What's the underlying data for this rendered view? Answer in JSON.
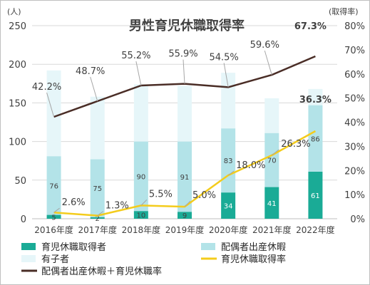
{
  "chart_data": {
    "type": "bar+line",
    "title": "男性育児休職取得率",
    "left_unit": "(人)",
    "right_unit": "(取得率)",
    "categories": [
      "2016年度",
      "2017年度",
      "2018年度",
      "2019年度",
      "2020年度",
      "2021年度",
      "2022年度"
    ],
    "left_axis": {
      "min": 0,
      "max": 250,
      "ticks": [
        "0",
        "50",
        "100",
        "150",
        "200",
        "250"
      ]
    },
    "right_axis": {
      "min": 0,
      "max": 80,
      "ticks": [
        "0%",
        "10%",
        "20%",
        "30%",
        "40%",
        "50%",
        "60%",
        "70%",
        "80%"
      ]
    },
    "bar_series": [
      {
        "name": "育児休職取得者",
        "color": "#1aab96",
        "values": [
          5,
          2,
          10,
          9,
          34,
          41,
          61
        ],
        "labels": [
          "5",
          "2",
          "10",
          "9",
          "34",
          "41",
          "61"
        ]
      },
      {
        "name": "配偶者出産休暇",
        "color": "#b3e3e8",
        "values": [
          76,
          75,
          90,
          91,
          83,
          70,
          86
        ],
        "labels": [
          "76",
          "75",
          "90",
          "91",
          "83",
          "70",
          "86"
        ]
      },
      {
        "name": "有子者",
        "color": "#e6f6f9",
        "values": [
          111,
          81,
          74,
          72,
          72,
          45,
          21
        ]
      }
    ],
    "line_series": [
      {
        "name": "配偶者出産休暇＋育児休職率",
        "color": "#4a2d26",
        "values": [
          42.2,
          48.7,
          55.2,
          55.9,
          54.5,
          59.6,
          67.3
        ],
        "labels": [
          "42.2%",
          "48.7%",
          "55.2%",
          "55.9%",
          "54.5%",
          "59.6%",
          "67.3%"
        ]
      },
      {
        "name": "育児休職取得率",
        "color": "#f4cc1c",
        "values": [
          2.6,
          1.3,
          5.5,
          5.0,
          18.0,
          26.3,
          36.3
        ],
        "labels": [
          "2.6%",
          "1.3%",
          "5.5%",
          "5.0%",
          "18.0%",
          "26.3%",
          "36.3%"
        ]
      }
    ],
    "legend": [
      "育児休職取得者",
      "配偶者出産休暇",
      "有子者",
      "育児休職取得率",
      "配偶者出産休暇＋育児休職率"
    ]
  }
}
